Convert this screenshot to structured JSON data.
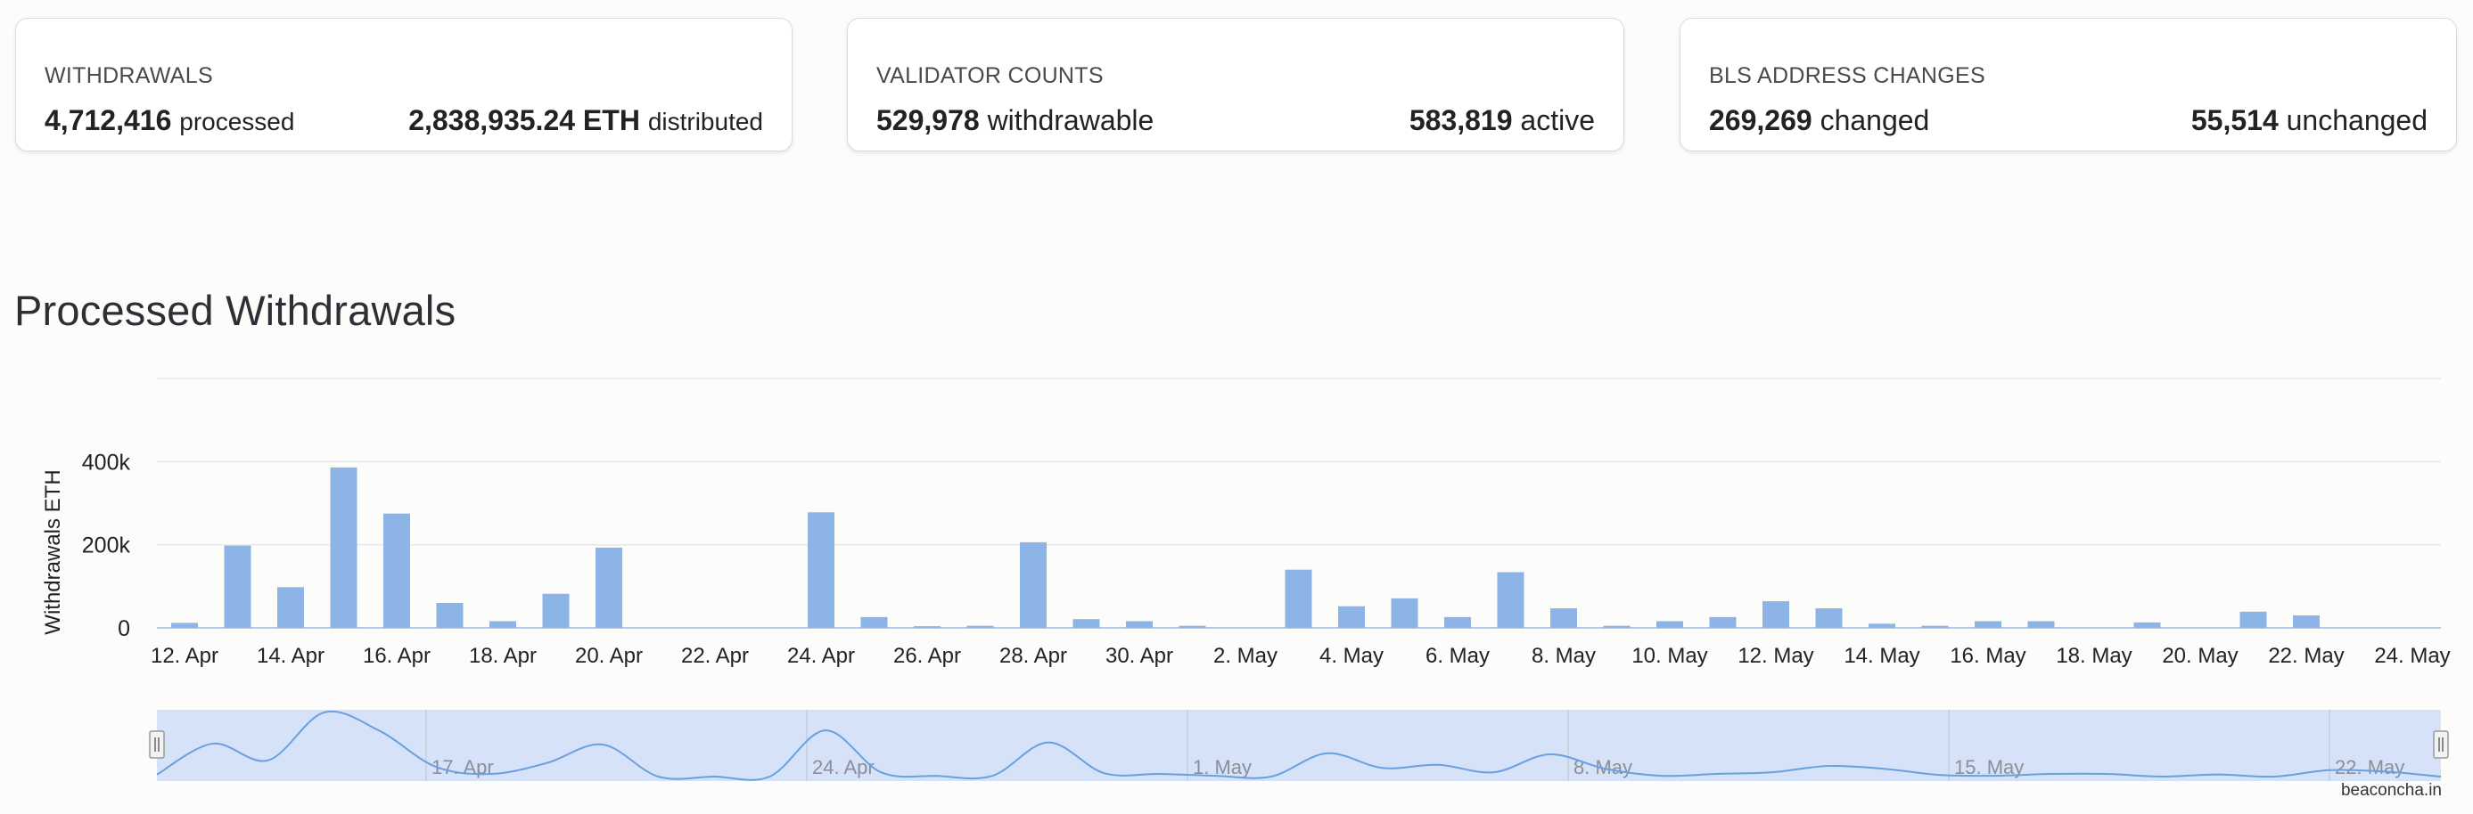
{
  "cards": [
    {
      "title": "WITHDRAWALS",
      "left": {
        "value": "4,712,416",
        "label": "processed"
      },
      "right": {
        "value": "2,838,935.24 ETH",
        "label": "distributed"
      }
    },
    {
      "title": "VALIDATOR COUNTS",
      "left": {
        "value": "529,978",
        "label": "withdrawable"
      },
      "right": {
        "value": "583,819",
        "label": "active"
      }
    },
    {
      "title": "BLS ADDRESS CHANGES",
      "left": {
        "value": "269,269",
        "label": "changed"
      },
      "right": {
        "value": "55,514",
        "label": "unchanged"
      }
    }
  ],
  "section_title": "Processed Withdrawals",
  "watermark": "beaconcha.in",
  "colors": {
    "bar": "#8cb4e6",
    "navigator_fill": "#d5e2f7",
    "navigator_line": "#6aa0df"
  },
  "chart_data": {
    "type": "bar",
    "ylabel": "Withdrawals ETH",
    "ylim": [
      0,
      600000
    ],
    "yticks": [
      0,
      200000,
      400000
    ],
    "ytick_labels": [
      "0",
      "200k",
      "400k"
    ],
    "grid": true,
    "xtick_labels": [
      "12. Apr",
      "14. Apr",
      "16. Apr",
      "18. Apr",
      "20. Apr",
      "22. Apr",
      "24. Apr",
      "26. Apr",
      "28. Apr",
      "30. Apr",
      "2. May",
      "4. May",
      "6. May",
      "8. May",
      "10. May",
      "12. May",
      "14. May",
      "16. May",
      "18. May",
      "20. May",
      "22. May",
      "24. May"
    ],
    "categories": [
      "12. Apr",
      "13. Apr",
      "14. Apr",
      "15. Apr",
      "16. Apr",
      "17. Apr",
      "18. Apr",
      "19. Apr",
      "20. Apr",
      "21. Apr",
      "22. Apr",
      "23. Apr",
      "24. Apr",
      "25. Apr",
      "26. Apr",
      "27. Apr",
      "28. Apr",
      "29. Apr",
      "30. Apr",
      "1. May",
      "2. May",
      "3. May",
      "4. May",
      "5. May",
      "6. May",
      "7. May",
      "8. May",
      "9. May",
      "10. May",
      "11. May",
      "12. May",
      "13. May",
      "14. May",
      "15. May",
      "16. May",
      "17. May",
      "18. May",
      "19. May",
      "20. May",
      "21. May",
      "22. May",
      "23. May"
    ],
    "values": [
      12000,
      198000,
      98000,
      386000,
      275000,
      60000,
      16000,
      82000,
      193000,
      0,
      0,
      0,
      278000,
      26000,
      4000,
      5000,
      206000,
      21000,
      16000,
      5000,
      0,
      140000,
      52000,
      71000,
      26000,
      134000,
      47000,
      5000,
      16000,
      26000,
      64000,
      47000,
      10000,
      5000,
      16000,
      16000,
      0,
      13000,
      0,
      39000,
      30000,
      0
    ],
    "navigator": {
      "xtick_labels": [
        "17. Apr",
        "24. Apr",
        "1. May",
        "8. May",
        "15. May",
        "22. May"
      ]
    }
  }
}
